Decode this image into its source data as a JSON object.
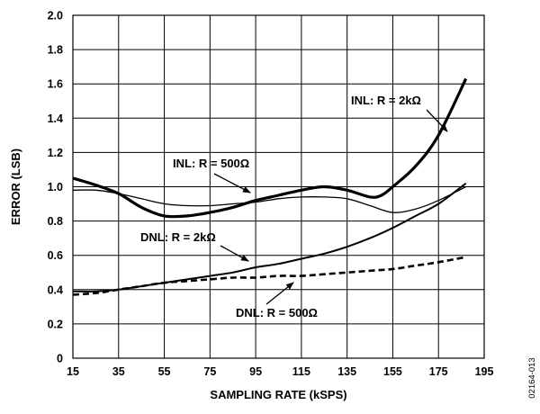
{
  "chart_data": {
    "type": "line",
    "xlabel": "SAMPLING RATE (kSPS)",
    "ylabel": "ERROR (LSB)",
    "xlim": [
      15,
      195
    ],
    "ylim": [
      0,
      2.0
    ],
    "xticks": [
      "15",
      "35",
      "55",
      "75",
      "95",
      "115",
      "135",
      "155",
      "175",
      "195"
    ],
    "yticks": [
      "0",
      "0.2",
      "0.4",
      "0.6",
      "0.8",
      "1.0",
      "1.2",
      "1.4",
      "1.6",
      "1.8",
      "2.0"
    ],
    "grid": true,
    "figure_id": "02164-013",
    "annotations": [
      "INL: R = 2kΩ",
      "INL: R = 500Ω",
      "DNL: R = 2kΩ",
      "DNL: R = 500Ω"
    ],
    "series": [
      {
        "name": "INL: R = 2kΩ",
        "style": "thick-solid",
        "x": [
          15,
          25,
          35,
          45,
          55,
          65,
          75,
          85,
          95,
          105,
          115,
          125,
          135,
          145,
          150,
          155,
          165,
          175,
          187
        ],
        "y": [
          1.05,
          1.01,
          0.96,
          0.88,
          0.83,
          0.83,
          0.85,
          0.88,
          0.92,
          0.95,
          0.98,
          1.0,
          0.98,
          0.94,
          0.95,
          1.0,
          1.12,
          1.3,
          1.63
        ]
      },
      {
        "name": "INL: R = 500Ω",
        "style": "thin-solid",
        "x": [
          15,
          25,
          35,
          45,
          55,
          65,
          75,
          85,
          95,
          105,
          115,
          125,
          135,
          145,
          155,
          165,
          175,
          187
        ],
        "y": [
          0.98,
          0.98,
          0.96,
          0.93,
          0.9,
          0.89,
          0.89,
          0.9,
          0.91,
          0.93,
          0.94,
          0.94,
          0.93,
          0.89,
          0.85,
          0.87,
          0.92,
          1.0
        ]
      },
      {
        "name": "DNL: R = 2kΩ",
        "style": "medium-solid",
        "x": [
          15,
          25,
          35,
          45,
          55,
          65,
          75,
          85,
          95,
          105,
          115,
          125,
          135,
          145,
          155,
          165,
          175,
          187
        ],
        "y": [
          0.39,
          0.39,
          0.4,
          0.42,
          0.44,
          0.46,
          0.48,
          0.5,
          0.53,
          0.55,
          0.58,
          0.61,
          0.65,
          0.7,
          0.76,
          0.83,
          0.9,
          1.02
        ]
      },
      {
        "name": "DNL: R = 500Ω",
        "style": "dashed",
        "x": [
          15,
          25,
          35,
          45,
          55,
          65,
          75,
          85,
          95,
          105,
          115,
          125,
          135,
          145,
          155,
          165,
          175,
          187
        ],
        "y": [
          0.37,
          0.38,
          0.4,
          0.42,
          0.44,
          0.45,
          0.46,
          0.47,
          0.47,
          0.48,
          0.48,
          0.49,
          0.5,
          0.51,
          0.52,
          0.54,
          0.56,
          0.59
        ]
      }
    ]
  }
}
